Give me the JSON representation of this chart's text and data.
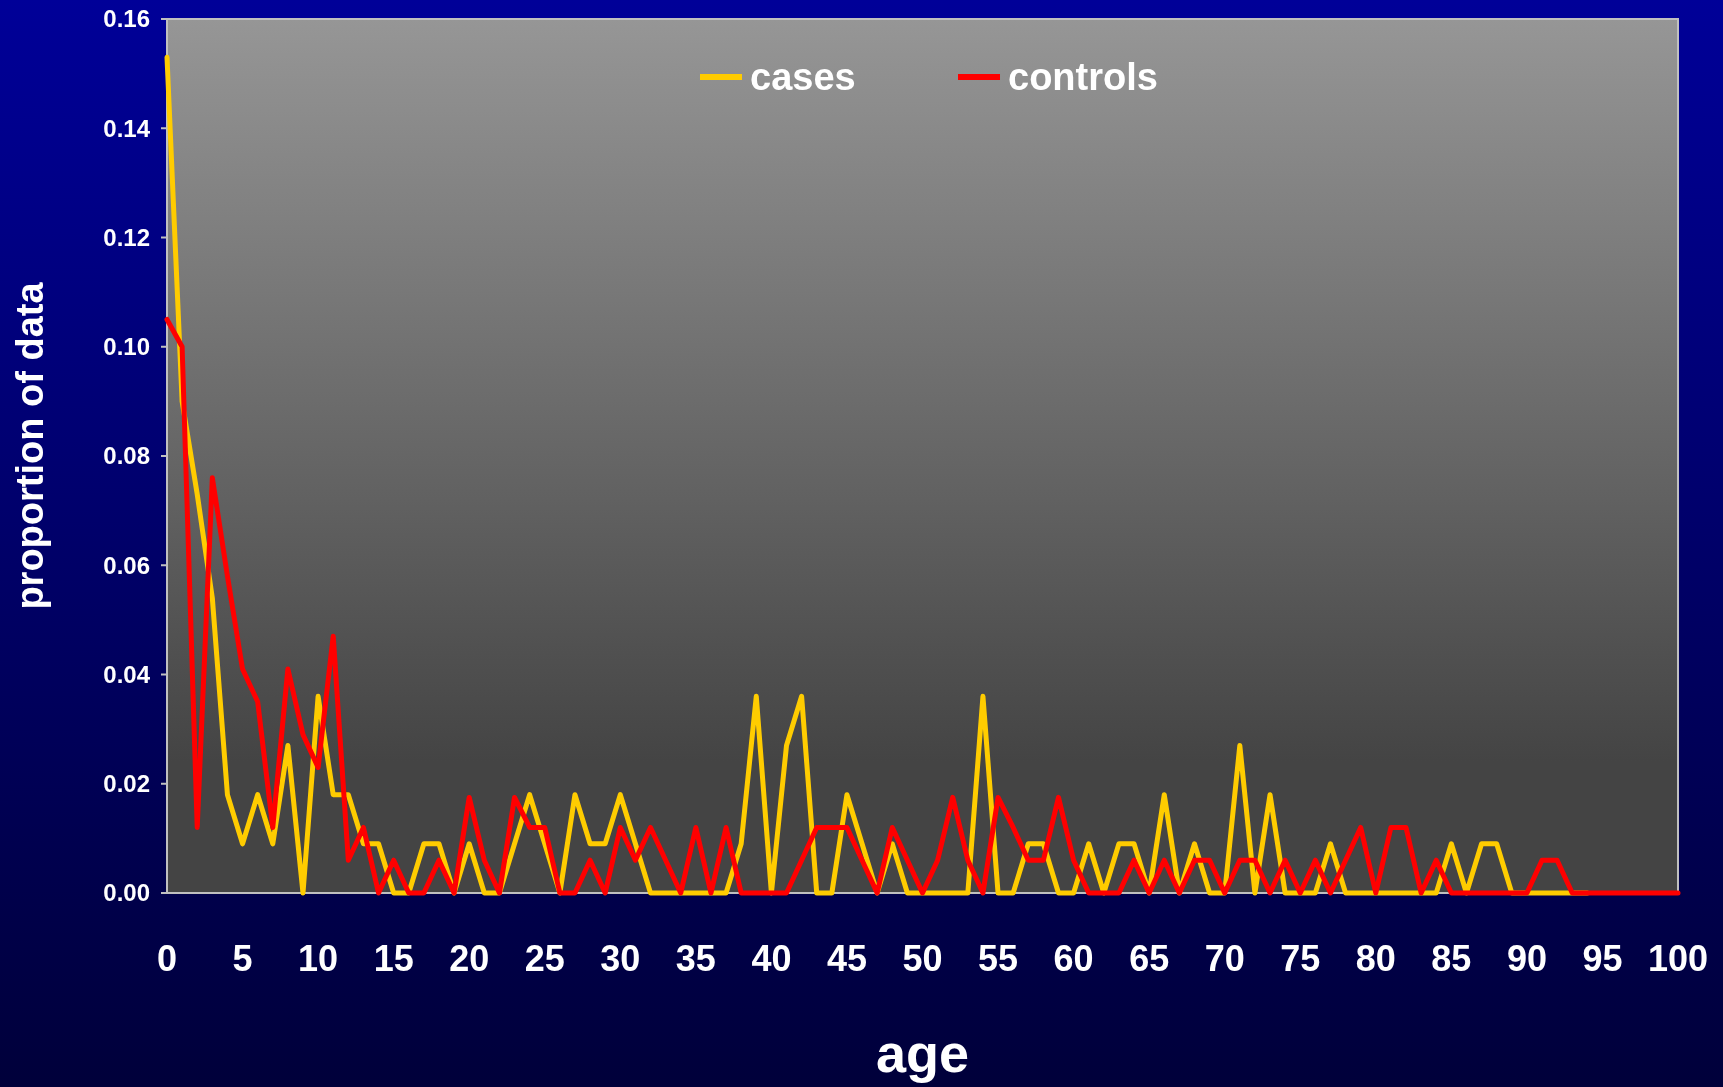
{
  "chart_data": {
    "type": "line",
    "xlabel": "age",
    "ylabel": "proportion of data",
    "x": [
      0,
      1,
      2,
      3,
      4,
      5,
      6,
      7,
      8,
      9,
      10,
      11,
      12,
      13,
      14,
      15,
      16,
      17,
      18,
      19,
      20,
      21,
      22,
      23,
      24,
      25,
      26,
      27,
      28,
      29,
      30,
      31,
      32,
      33,
      34,
      35,
      36,
      37,
      38,
      39,
      40,
      41,
      42,
      43,
      44,
      45,
      46,
      47,
      48,
      49,
      50,
      51,
      52,
      53,
      54,
      55,
      56,
      57,
      58,
      59,
      60,
      61,
      62,
      63,
      64,
      65,
      66,
      67,
      68,
      69,
      70,
      71,
      72,
      73,
      74,
      75,
      76,
      77,
      78,
      79,
      80,
      81,
      82,
      83,
      84,
      85,
      86,
      87,
      88,
      89,
      90,
      91,
      92,
      93,
      94,
      95,
      96,
      97,
      98,
      99,
      100
    ],
    "series": [
      {
        "name": "cases",
        "color": "#ffcc00",
        "values": [
          0.153,
          0.09,
          0.073,
          0.054,
          0.018,
          0.009,
          0.018,
          0.009,
          0.027,
          0,
          0.036,
          0.018,
          0.018,
          0.009,
          0.009,
          0,
          0,
          0.009,
          0.009,
          0,
          0.009,
          0,
          0,
          0.009,
          0.018,
          0.009,
          0,
          0.018,
          0.009,
          0.009,
          0.018,
          0.009,
          0,
          0,
          0,
          0,
          0,
          0,
          0.009,
          0.036,
          0,
          0.027,
          0.036,
          0,
          0,
          0.018,
          0.009,
          0,
          0.009,
          0,
          0,
          0,
          0,
          0,
          0.036,
          0,
          0,
          0.009,
          0.009,
          0,
          0,
          0.009,
          0,
          0.009,
          0.009,
          0,
          0.018,
          0,
          0.009,
          0,
          0,
          0.027,
          0,
          0.018,
          0,
          0,
          0,
          0.009,
          0,
          0,
          0,
          0,
          0,
          0,
          0,
          0.009,
          0,
          0.009,
          0.009,
          0,
          0,
          0,
          0,
          0,
          0,
          null,
          null,
          null,
          null,
          null,
          null
        ]
      },
      {
        "name": "controls",
        "color": "#ff0000",
        "values": [
          0.105,
          0.1,
          0.012,
          0.076,
          0.058,
          0.041,
          0.035,
          0.012,
          0.041,
          0.029,
          0.023,
          0.047,
          0.006,
          0.012,
          0,
          0.006,
          0,
          0,
          0.006,
          0,
          0.0175,
          0.006,
          0,
          0.0175,
          0.012,
          0.012,
          0,
          0,
          0.006,
          0,
          0.012,
          0.006,
          0.012,
          0.006,
          0,
          0.012,
          0,
          0.012,
          0,
          0,
          0,
          0,
          0.006,
          0.012,
          0.012,
          0.012,
          0.006,
          0,
          0.012,
          0.006,
          0,
          0.006,
          0.0175,
          0.006,
          0,
          0.0175,
          0.012,
          0.006,
          0.006,
          0.0175,
          0.006,
          0,
          0,
          0,
          0.006,
          0,
          0.006,
          0,
          0.006,
          0.006,
          0,
          0.006,
          0.006,
          0,
          0.006,
          0,
          0.006,
          0,
          0.006,
          0.012,
          0,
          0.012,
          0.012,
          0,
          0.006,
          0,
          0,
          0,
          0,
          0,
          0,
          0.006,
          0.006,
          0,
          0,
          0,
          0,
          0,
          0,
          0,
          0
        ]
      }
    ],
    "xlim": [
      0,
      100
    ],
    "xticks": [
      0,
      5,
      10,
      15,
      20,
      25,
      30,
      35,
      40,
      45,
      50,
      55,
      60,
      65,
      70,
      75,
      80,
      85,
      90,
      95,
      100
    ],
    "ylim": [
      0,
      0.16
    ],
    "yticks": [
      {
        "value": 0,
        "label": "0.00"
      },
      {
        "value": 0.02,
        "label": "0.02"
      },
      {
        "value": 0.04,
        "label": "0.04"
      },
      {
        "value": 0.06,
        "label": "0.06"
      },
      {
        "value": 0.08,
        "label": "0.08"
      },
      {
        "value": 0.1,
        "label": "0.10"
      },
      {
        "value": 0.12,
        "label": "0.12"
      },
      {
        "value": 0.14,
        "label": "0.14"
      },
      {
        "value": 0.16,
        "label": "0.16"
      }
    ],
    "legend": "top",
    "grid": false,
    "marker": "none",
    "line_style": "solid"
  }
}
